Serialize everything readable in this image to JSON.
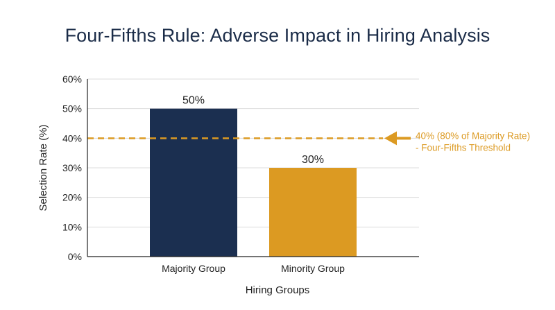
{
  "chart_data": {
    "type": "bar",
    "title": "Four-Fifths Rule: Adverse Impact in Hiring Analysis",
    "xlabel": "Hiring Groups",
    "ylabel": "Selection Rate (%)",
    "categories": [
      "Majority Group",
      "Minority Group"
    ],
    "values": [
      50,
      30
    ],
    "data_labels": [
      "50%",
      "30%"
    ],
    "ylim": [
      0,
      60
    ],
    "yticks": [
      0,
      10,
      20,
      30,
      40,
      50,
      60
    ],
    "ytick_labels": [
      "0%",
      "10%",
      "20%",
      "30%",
      "40%",
      "50%",
      "60%"
    ],
    "bar_colors": [
      "#1b2f50",
      "#dc9a22"
    ],
    "grid": "horizontal",
    "threshold": {
      "value": 40,
      "style": "dashed",
      "color": "#dc9a22",
      "label_lines": [
        "40% (80% of Majority Rate)",
        "- Four-Fifths Threshold"
      ]
    }
  }
}
